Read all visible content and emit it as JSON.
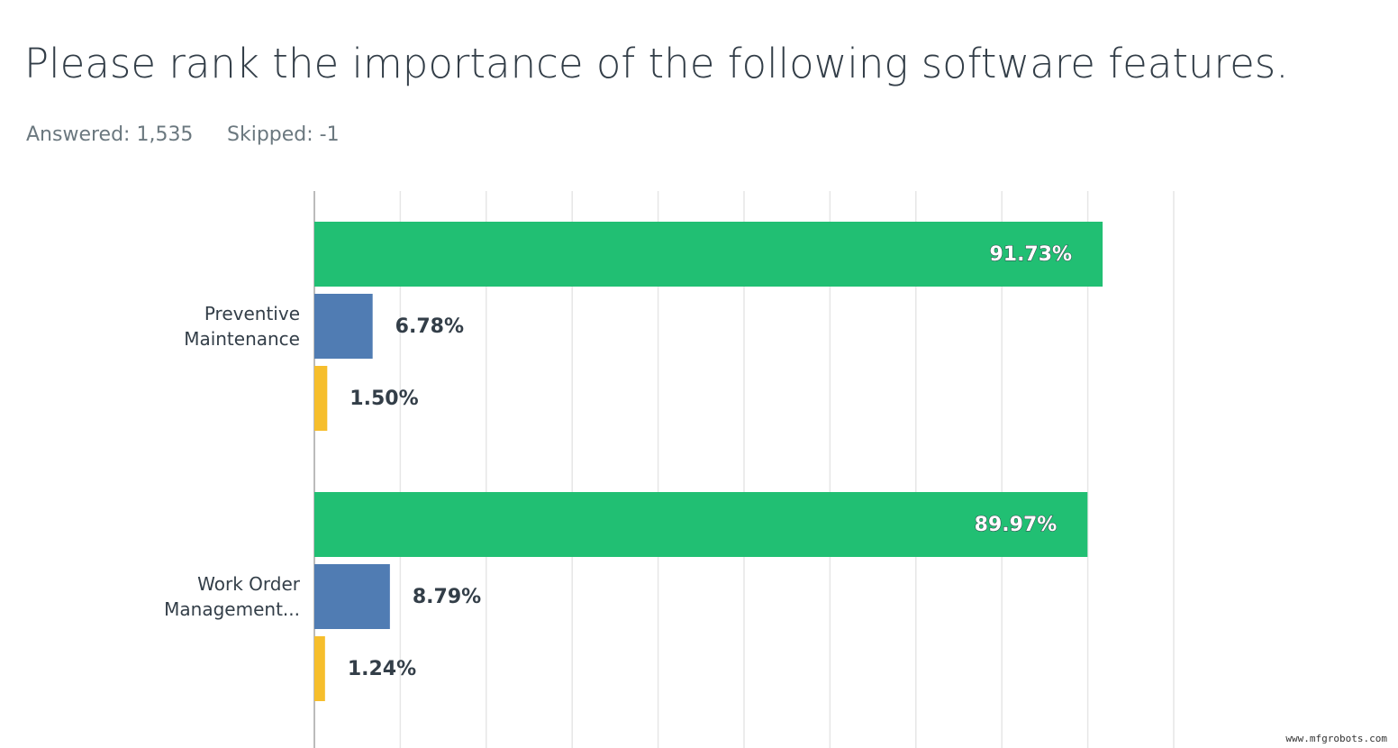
{
  "chart_data": {
    "type": "hbar",
    "title": "Please rank the importance of the following software features.",
    "answered": "Answered: 1,535",
    "skipped": "Skipped: -1",
    "categories": [
      "Preventive Maintenance",
      "Work Order Management..."
    ],
    "series": [
      {
        "color": "#21bf73",
        "values": [
          91.73,
          89.97
        ],
        "value_labels": [
          "91.73%",
          "89.97%"
        ]
      },
      {
        "color": "#507cb3",
        "values": [
          6.78,
          8.79
        ],
        "value_labels": [
          "6.78%",
          "8.79%"
        ]
      },
      {
        "color": "#f6be2c",
        "values": [
          1.5,
          1.24
        ],
        "value_labels": [
          "1.50%",
          "1.24%"
        ]
      }
    ],
    "xlim": [
      0,
      100
    ],
    "xticks": [
      0,
      10,
      20,
      30,
      40,
      50,
      60,
      70,
      80,
      90,
      100
    ],
    "grid": true,
    "watermark": "www.mfgrobots.com"
  }
}
